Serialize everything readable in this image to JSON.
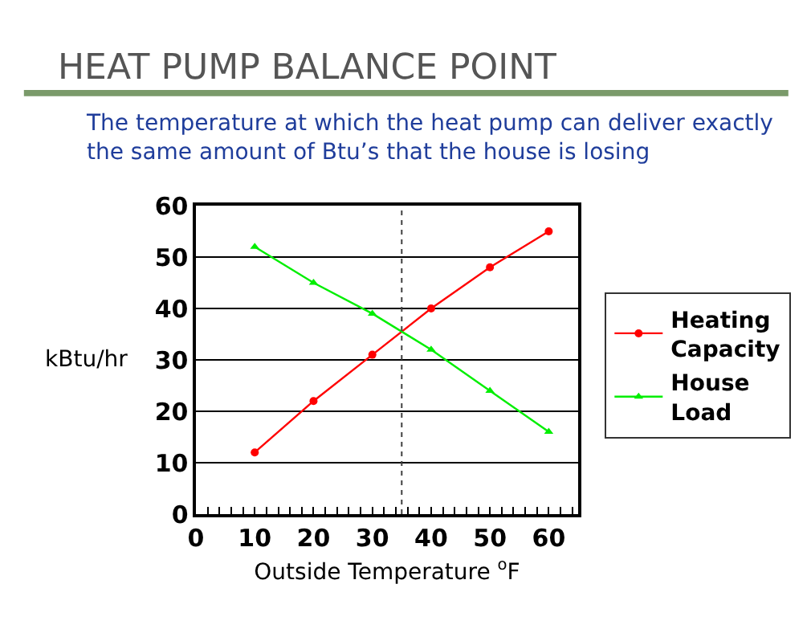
{
  "chart_data": {
    "type": "line",
    "title": "HEAT PUMP BALANCE POINT",
    "subtitle": "The temperature at which the heat pump can deliver exactly the same amount of Btu’s that the house is losing",
    "xlabel": "Outside Temperature $^{o}$F",
    "ylabel": "kBtu/hr",
    "x": [
      10,
      20,
      30,
      40,
      50,
      60
    ],
    "series": [
      {
        "name": "Heating Capacity",
        "color": "#ff0000",
        "marker": "circle",
        "values": [
          12,
          22,
          31,
          40,
          48,
          55
        ]
      },
      {
        "name": "House Load",
        "color": "#00ee00",
        "marker": "triangle",
        "values": [
          52,
          45,
          39,
          32,
          24,
          16
        ]
      }
    ],
    "xlim": [
      0,
      65
    ],
    "xticks": [
      0,
      {
        "value": 2,
        "label": null
      },
      {
        "value": 4,
        "label": null
      },
      {
        "value": 6,
        "label": null
      },
      {
        "value": 8,
        "label": null
      },
      10,
      {
        "value": 12,
        "label": null
      },
      {
        "value": 14,
        "label": null
      },
      {
        "value": 16,
        "label": null
      },
      {
        "value": 18,
        "label": null
      },
      20,
      {
        "value": 22,
        "label": null
      },
      {
        "value": 24,
        "label": null
      },
      {
        "value": 26,
        "label": null
      },
      {
        "value": 28,
        "label": null
      },
      30,
      {
        "value": 32,
        "label": null
      },
      {
        "value": 34,
        "label": null
      },
      {
        "value": 36,
        "label": null
      },
      {
        "value": 38,
        "label": null
      },
      40,
      {
        "value": 42,
        "label": null
      },
      {
        "value": 44,
        "label": null
      },
      {
        "value": 46,
        "label": null
      },
      {
        "value": 48,
        "label": null
      },
      50,
      {
        "value": 52,
        "label": null
      },
      {
        "value": 54,
        "label": null
      },
      {
        "value": 56,
        "label": null
      },
      {
        "value": 58,
        "label": null
      },
      60,
      {
        "value": 62,
        "label": null
      },
      {
        "value": 64,
        "label": null
      }
    ],
    "ylim": [
      0,
      60
    ],
    "yticks": [
      0,
      10,
      20,
      30,
      40,
      50,
      60
    ],
    "grid": "y",
    "legend": "right",
    "ref_lines": [
      {
        "axis": "x",
        "value": 35,
        "line_style": "dotted",
        "color": "#404040"
      }
    ]
  }
}
